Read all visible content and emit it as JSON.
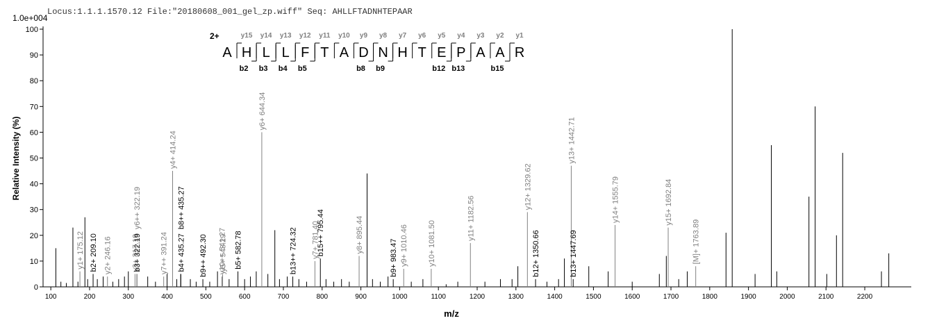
{
  "chart_data": {
    "type": "spectrum",
    "title": "Locus:1.1.1.1570.12 File:\"20180608_001_gel_zp.wiff\"   Seq: AHLLFTADNHTEPAAR",
    "scale_label": "1.0e+004",
    "y_label": "Relative   Intensity (%)",
    "x_label": "m/z",
    "xlim": [
      80,
      2320
    ],
    "ylim": [
      0,
      100
    ],
    "xticks": [
      100,
      200,
      300,
      400,
      500,
      600,
      700,
      800,
      900,
      1000,
      1100,
      1200,
      1300,
      1400,
      1500,
      1600,
      1700,
      1800,
      1900,
      2000,
      2100,
      2200
    ],
    "yticks": [
      0,
      10,
      20,
      30,
      40,
      50,
      60,
      70,
      80,
      90,
      100
    ],
    "peak_color": "#000000",
    "sequence": {
      "charge": "2+",
      "residues": [
        "A",
        "H",
        "L",
        "L",
        "F",
        "T",
        "A",
        "D",
        "N",
        "H",
        "T",
        "E",
        "P",
        "A",
        "A",
        "R"
      ],
      "y_ions": [
        null,
        "y15",
        "y14",
        "y13",
        "y12",
        "y11",
        "y10",
        "y9",
        "y8",
        "y7",
        "y6",
        "y5",
        "y4",
        "y3",
        "y2",
        "y1"
      ],
      "b_ions": [
        null,
        "b2",
        "b3",
        "b4",
        "b5",
        null,
        null,
        "b8",
        "b9",
        null,
        null,
        "b12",
        "b13",
        null,
        "b15",
        null
      ]
    },
    "peaks": [
      {
        "mz": 113,
        "intensity": 15
      },
      {
        "mz": 126,
        "intensity": 2
      },
      {
        "mz": 140,
        "intensity": 1.5
      },
      {
        "mz": 157,
        "intensity": 23
      },
      {
        "mz": 170,
        "intensity": 2
      },
      {
        "mz": 175.12,
        "intensity": 6,
        "label": "y1+ 175.12",
        "label_color": "#808080"
      },
      {
        "mz": 188,
        "intensity": 27
      },
      {
        "mz": 195,
        "intensity": 3
      },
      {
        "mz": 209.1,
        "intensity": 5,
        "label": "b2+ 209.10",
        "label_color": "#000000"
      },
      {
        "mz": 220,
        "intensity": 3
      },
      {
        "mz": 235,
        "intensity": 4
      },
      {
        "mz": 246.16,
        "intensity": 4,
        "label": "y2+ 246.16",
        "label_color": "#808080"
      },
      {
        "mz": 260,
        "intensity": 2
      },
      {
        "mz": 275,
        "intensity": 3
      },
      {
        "mz": 290,
        "intensity": 4
      },
      {
        "mz": 300,
        "intensity": 6
      },
      {
        "mz": 317.19,
        "intensity": 5,
        "label": "y3+ 317.19",
        "label_color": "#808080"
      },
      {
        "mz": 322.19,
        "intensity": 5,
        "label": "b3+ 322.19",
        "label_color": "#000000"
      },
      {
        "mz": 322.19,
        "intensity": 5,
        "label": "y6++ 322.19",
        "label_color": "#808080"
      },
      {
        "mz": 350,
        "intensity": 4
      },
      {
        "mz": 370,
        "intensity": 2
      },
      {
        "mz": 391.24,
        "intensity": 4,
        "label": "y7++ 391.24",
        "label_color": "#808080"
      },
      {
        "mz": 400,
        "intensity": 5
      },
      {
        "mz": 414.24,
        "intensity": 45,
        "label": "y4+ 414.24",
        "label_color": "#808080"
      },
      {
        "mz": 425,
        "intensity": 3
      },
      {
        "mz": 435.27,
        "intensity": 5,
        "label": "b4+ 435.27",
        "label_color": "#000000"
      },
      {
        "mz": 435.27,
        "intensity": 5,
        "label": "b8++ 435.27",
        "label_color": "#000000"
      },
      {
        "mz": 460,
        "intensity": 3
      },
      {
        "mz": 475,
        "intensity": 2
      },
      {
        "mz": 492.3,
        "intensity": 3,
        "label": "b9++ 492.30",
        "label_color": "#000000"
      },
      {
        "mz": 510,
        "intensity": 2
      },
      {
        "mz": 530,
        "intensity": 6
      },
      {
        "mz": 541.27,
        "intensity": 4,
        "label": "y10++ 541.27",
        "label_color": "#808080"
      },
      {
        "mz": 543.29,
        "intensity": 5,
        "label": "y5+ 543.29",
        "label_color": "#808080"
      },
      {
        "mz": 560,
        "intensity": 3
      },
      {
        "mz": 582.78,
        "intensity": 6,
        "label": "b5+ 582.78",
        "label_color": "#000000"
      },
      {
        "mz": 600,
        "intensity": 3
      },
      {
        "mz": 615,
        "intensity": 4
      },
      {
        "mz": 630,
        "intensity": 6
      },
      {
        "mz": 644.34,
        "intensity": 60,
        "label": "y6+ 644.34",
        "label_color": "#808080"
      },
      {
        "mz": 660,
        "intensity": 5
      },
      {
        "mz": 678,
        "intensity": 22
      },
      {
        "mz": 690,
        "intensity": 3
      },
      {
        "mz": 710,
        "intensity": 4
      },
      {
        "mz": 724.32,
        "intensity": 4,
        "label": "b13++ 724.32",
        "label_color": "#000000"
      },
      {
        "mz": 740,
        "intensity": 3
      },
      {
        "mz": 760,
        "intensity": 2
      },
      {
        "mz": 781.4,
        "intensity": 10,
        "label": "y7+ 781.40",
        "label_color": "#808080"
      },
      {
        "mz": 795.44,
        "intensity": 11,
        "label": "b15++ 795.44",
        "label_color": "#000000"
      },
      {
        "mz": 810,
        "intensity": 3
      },
      {
        "mz": 830,
        "intensity": 2
      },
      {
        "mz": 850,
        "intensity": 3
      },
      {
        "mz": 870,
        "intensity": 2
      },
      {
        "mz": 895.44,
        "intensity": 12,
        "label": "y8+ 895.44",
        "label_color": "#808080"
      },
      {
        "mz": 916,
        "intensity": 44
      },
      {
        "mz": 930,
        "intensity": 3
      },
      {
        "mz": 950,
        "intensity": 2
      },
      {
        "mz": 970,
        "intensity": 4
      },
      {
        "mz": 983.47,
        "intensity": 3,
        "label": "b9+ 983.47",
        "label_color": "#000000"
      },
      {
        "mz": 1010.46,
        "intensity": 7,
        "label": "y9+ 1010.46",
        "label_color": "#808080"
      },
      {
        "mz": 1030,
        "intensity": 2
      },
      {
        "mz": 1060,
        "intensity": 3
      },
      {
        "mz": 1081.5,
        "intensity": 7,
        "label": "y10+ 1081.50",
        "label_color": "#808080"
      },
      {
        "mz": 1120,
        "intensity": 1
      },
      {
        "mz": 1150,
        "intensity": 2
      },
      {
        "mz": 1182.56,
        "intensity": 17,
        "label": "y11+ 1182.56",
        "label_color": "#808080"
      },
      {
        "mz": 1220,
        "intensity": 2
      },
      {
        "mz": 1260,
        "intensity": 3
      },
      {
        "mz": 1290,
        "intensity": 3
      },
      {
        "mz": 1305,
        "intensity": 8
      },
      {
        "mz": 1329.62,
        "intensity": 29,
        "label": "y12+ 1329.62",
        "label_color": "#808080"
      },
      {
        "mz": 1350.66,
        "intensity": 3,
        "label": "b12+ 1350.66",
        "label_color": "#000000"
      },
      {
        "mz": 1380,
        "intensity": 2
      },
      {
        "mz": 1410,
        "intensity": 3
      },
      {
        "mz": 1425,
        "intensity": 11
      },
      {
        "mz": 1442.71,
        "intensity": 47,
        "label": "y13+ 1442.71",
        "label_color": "#808080"
      },
      {
        "mz": 1447.69,
        "intensity": 3,
        "label": "b13+ 1447.69",
        "label_color": "#000000"
      },
      {
        "mz": 1488,
        "intensity": 8
      },
      {
        "mz": 1538,
        "intensity": 6
      },
      {
        "mz": 1555.79,
        "intensity": 24,
        "label": "y14+ 1555.79",
        "label_color": "#808080"
      },
      {
        "mz": 1600,
        "intensity": 2
      },
      {
        "mz": 1670,
        "intensity": 5
      },
      {
        "mz": 1688,
        "intensity": 12
      },
      {
        "mz": 1692.84,
        "intensity": 23,
        "label": "y15+ 1692.84",
        "label_color": "#808080"
      },
      {
        "mz": 1720,
        "intensity": 3
      },
      {
        "mz": 1742,
        "intensity": 6
      },
      {
        "mz": 1763.89,
        "intensity": 8,
        "label": "[M]+ 1763.89",
        "label_color": "#808080"
      },
      {
        "mz": 1842,
        "intensity": 21
      },
      {
        "mz": 1858,
        "intensity": 100
      },
      {
        "mz": 1917,
        "intensity": 5
      },
      {
        "mz": 1959,
        "intensity": 55
      },
      {
        "mz": 1973,
        "intensity": 6
      },
      {
        "mz": 2056,
        "intensity": 35
      },
      {
        "mz": 2072,
        "intensity": 70
      },
      {
        "mz": 2102,
        "intensity": 5
      },
      {
        "mz": 2127,
        "intensity": 20
      },
      {
        "mz": 2143,
        "intensity": 52
      },
      {
        "mz": 2243,
        "intensity": 6
      },
      {
        "mz": 2262,
        "intensity": 13
      }
    ]
  }
}
